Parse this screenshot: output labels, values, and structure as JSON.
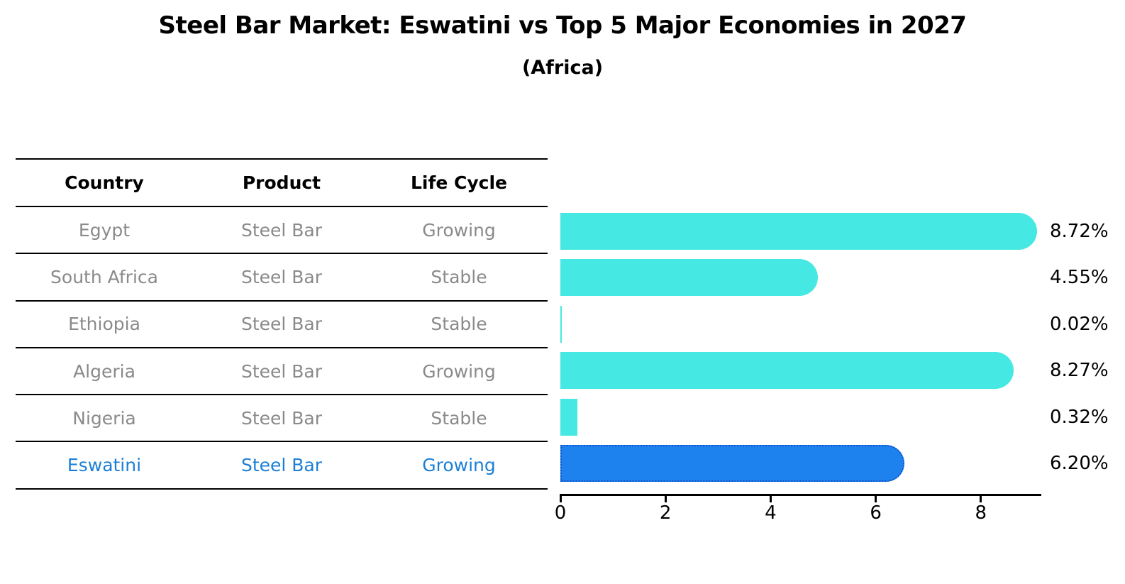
{
  "title": "Steel Bar Market: Eswatini vs Top 5 Major Economies in 2027",
  "subtitle": "(Africa)",
  "table": {
    "columns": [
      "Country",
      "Product",
      "Life Cycle"
    ]
  },
  "rows": [
    {
      "country": "Egypt",
      "product": "Steel Bar",
      "life_cycle": "Growing",
      "value": 8.72,
      "label": "8.72%",
      "highlight": false
    },
    {
      "country": "South Africa",
      "product": "Steel Bar",
      "life_cycle": "Stable",
      "value": 4.55,
      "label": "4.55%",
      "highlight": false
    },
    {
      "country": "Ethiopia",
      "product": "Steel Bar",
      "life_cycle": "Stable",
      "value": 0.02,
      "label": "0.02%",
      "highlight": false
    },
    {
      "country": "Algeria",
      "product": "Steel Bar",
      "life_cycle": "Growing",
      "value": 8.27,
      "label": "8.27%",
      "highlight": false
    },
    {
      "country": "Nigeria",
      "product": "Steel Bar",
      "life_cycle": "Stable",
      "value": 0.32,
      "label": "0.32%",
      "highlight": false
    },
    {
      "country": "Eswatini",
      "product": "Steel Bar",
      "life_cycle": "Growing",
      "value": 6.2,
      "label": "6.20%",
      "highlight": true
    }
  ],
  "chart_data": {
    "type": "bar",
    "orientation": "horizontal",
    "title": "Steel Bar Market: Eswatini vs Top 5 Major Economies in 2027",
    "subtitle": "(Africa)",
    "categories": [
      "Egypt",
      "South Africa",
      "Ethiopia",
      "Algeria",
      "Nigeria",
      "Eswatini"
    ],
    "values": [
      8.72,
      4.55,
      0.02,
      8.27,
      0.32,
      6.2
    ],
    "value_labels": [
      "8.72%",
      "4.55%",
      "0.02%",
      "8.27%",
      "0.32%",
      "6.20%"
    ],
    "xlabel": "",
    "ylabel": "",
    "xlim": [
      0,
      9.15
    ],
    "xticks": [
      0,
      2,
      4,
      6,
      8
    ],
    "grid": false,
    "legend": false,
    "highlight_index": 5,
    "colors": {
      "bar_default": "#45e8e2",
      "bar_highlight": "#1e82ee",
      "bar_highlight_edge": "#1254c8",
      "highlight_text": "#1c7fd6",
      "table_text": "#8a8a8a",
      "axis_text": "#000000"
    }
  }
}
